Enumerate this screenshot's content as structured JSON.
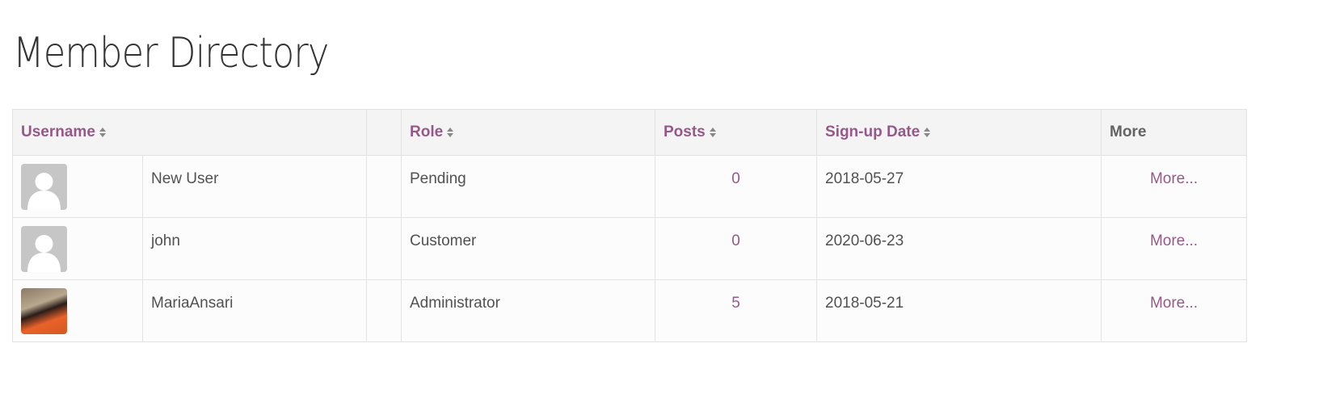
{
  "page": {
    "title": "Member Directory"
  },
  "accent": "#96588a",
  "table": {
    "headers": {
      "username": "Username",
      "role": "Role",
      "posts": "Posts",
      "signup": "Sign-up Date",
      "more": "More"
    },
    "rows": [
      {
        "avatar": "default-avatar",
        "username": "New User",
        "role": "Pending",
        "posts": "0",
        "signup": "2018-05-27",
        "more": "More..."
      },
      {
        "avatar": "default-avatar",
        "username": "john",
        "role": "Customer",
        "posts": "0",
        "signup": "2020-06-23",
        "more": "More..."
      },
      {
        "avatar": "photo-avatar",
        "username": "MariaAnsari",
        "role": "Administrator",
        "posts": "5",
        "signup": "2018-05-21",
        "more": "More..."
      }
    ]
  }
}
